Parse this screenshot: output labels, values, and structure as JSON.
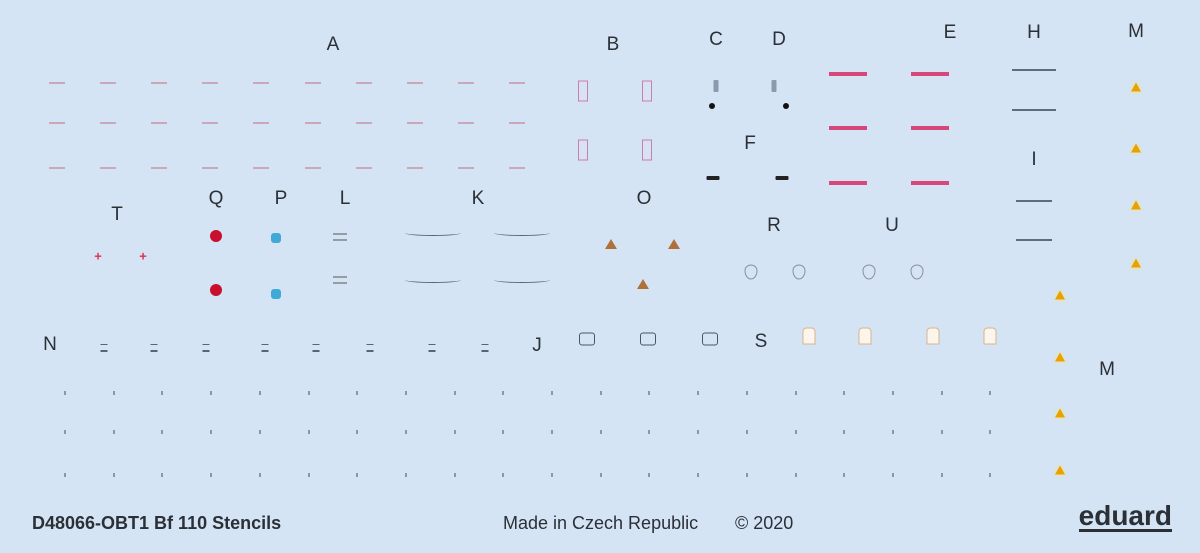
{
  "sheet": {
    "title": "D48066-OBT1 Bf 110 Stencils",
    "made_in": "Made in Czech Republic",
    "copyright": "© 2020",
    "logo": "eduard"
  },
  "labels": {
    "A": "A",
    "B": "B",
    "C": "C",
    "D": "D",
    "E": "E",
    "F": "F",
    "H": "H",
    "I": "I",
    "J": "J",
    "K": "K",
    "L": "L",
    "M": "M",
    "M2": "M",
    "N": "N",
    "O": "O",
    "P": "P",
    "Q": "Q",
    "R": "R",
    "S": "S",
    "T": "T",
    "U": "U"
  },
  "colors": {
    "background": "#d4e4f4",
    "red": "#c8102e",
    "blue": "#3fa9d8",
    "yellow": "#e8a200",
    "pink": "#d8477a"
  }
}
